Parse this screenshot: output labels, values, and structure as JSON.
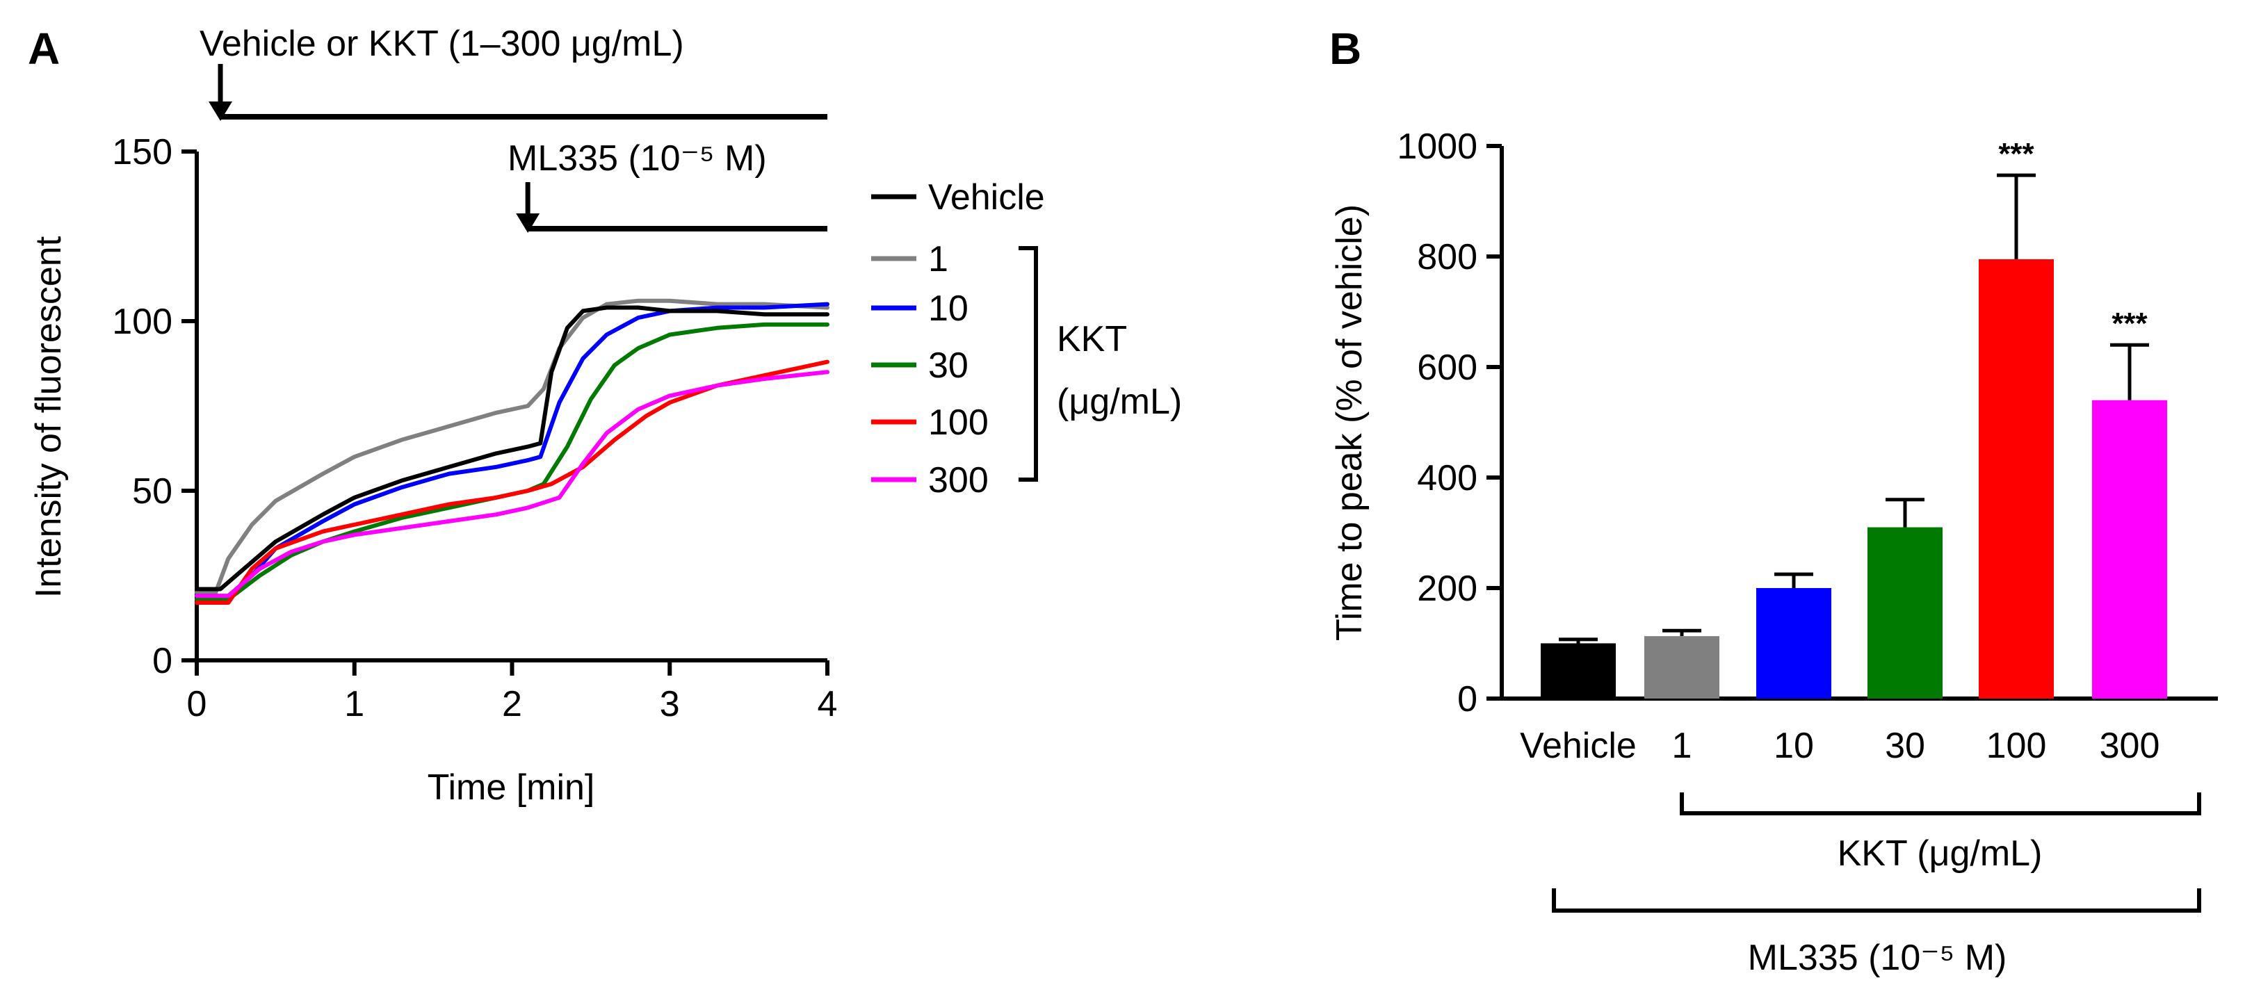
{
  "colors": {
    "vehicle": "#000000",
    "kkt_1": "#808080",
    "kkt_10": "#0000ff",
    "kkt_30": "#007a00",
    "kkt_100": "#ff0000",
    "kkt_300": "#ff00ff"
  },
  "chart_data": [
    {
      "panel": "A",
      "type": "line",
      "title": "",
      "xlabel": "Time [min]",
      "ylabel": "Intensity of fluorescent",
      "xlim": [
        0,
        4
      ],
      "ylim": [
        0,
        150
      ],
      "xticks": [
        0,
        1,
        2,
        3,
        4
      ],
      "yticks": [
        0,
        50,
        100,
        150
      ],
      "annotations": {
        "treatment": "Vehicle or KKT (1–300 μg/mL)",
        "treatment_start_min": 0.15,
        "ml335": "ML335 (10⁻⁵ M)",
        "ml335_start_min": 2.1
      },
      "legend": {
        "placement": "right",
        "group_label_line1": "KKT",
        "group_label_line2": "(μg/mL)",
        "entries": [
          "Vehicle",
          "1",
          "10",
          "30",
          "100",
          "300"
        ]
      },
      "series": [
        {
          "name": "Vehicle",
          "color": "#000000",
          "x": [
            0,
            0.15,
            0.3,
            0.5,
            0.8,
            1.0,
            1.3,
            1.6,
            1.9,
            2.1,
            2.18,
            2.25,
            2.35,
            2.45,
            2.6,
            2.8,
            3.0,
            3.3,
            3.6,
            4.0
          ],
          "y": [
            21,
            21,
            27,
            35,
            43,
            48,
            53,
            57,
            61,
            63,
            64,
            85,
            98,
            103,
            104,
            104,
            103,
            103,
            102,
            102
          ]
        },
        {
          "name": "1",
          "color": "#808080",
          "x": [
            0,
            0.12,
            0.2,
            0.35,
            0.5,
            0.8,
            1.0,
            1.3,
            1.6,
            1.9,
            2.1,
            2.2,
            2.3,
            2.45,
            2.6,
            2.8,
            3.0,
            3.3,
            3.6,
            4.0
          ],
          "y": [
            20,
            20,
            30,
            40,
            47,
            55,
            60,
            65,
            69,
            73,
            75,
            80,
            92,
            101,
            105,
            106,
            106,
            105,
            105,
            104
          ]
        },
        {
          "name": "10",
          "color": "#0000ff",
          "x": [
            0,
            0.2,
            0.35,
            0.5,
            0.8,
            1.0,
            1.3,
            1.6,
            1.9,
            2.1,
            2.18,
            2.3,
            2.45,
            2.6,
            2.8,
            3.0,
            3.3,
            3.6,
            4.0
          ],
          "y": [
            19,
            19,
            25,
            33,
            41,
            46,
            51,
            55,
            57,
            59,
            60,
            76,
            89,
            96,
            101,
            103,
            104,
            104,
            105
          ]
        },
        {
          "name": "30",
          "color": "#007a00",
          "x": [
            0,
            0.2,
            0.4,
            0.6,
            0.8,
            1.0,
            1.3,
            1.6,
            1.9,
            2.1,
            2.2,
            2.35,
            2.5,
            2.65,
            2.8,
            3.0,
            3.3,
            3.6,
            4.0
          ],
          "y": [
            18,
            18,
            25,
            31,
            35,
            38,
            42,
            45,
            48,
            50,
            52,
            63,
            77,
            87,
            92,
            96,
            98,
            99,
            99
          ]
        },
        {
          "name": "100",
          "color": "#ff0000",
          "x": [
            0,
            0.2,
            0.35,
            0.5,
            0.8,
            1.0,
            1.3,
            1.6,
            1.9,
            2.1,
            2.25,
            2.45,
            2.65,
            2.85,
            3.0,
            3.3,
            3.6,
            4.0
          ],
          "y": [
            17,
            17,
            27,
            33,
            38,
            40,
            43,
            46,
            48,
            50,
            52,
            57,
            65,
            72,
            76,
            81,
            84,
            88
          ]
        },
        {
          "name": "300",
          "color": "#ff00ff",
          "x": [
            0,
            0.2,
            0.4,
            0.6,
            0.8,
            1.0,
            1.3,
            1.6,
            1.9,
            2.1,
            2.3,
            2.45,
            2.6,
            2.8,
            3.0,
            3.3,
            3.6,
            4.0
          ],
          "y": [
            19,
            19,
            27,
            32,
            35,
            37,
            39,
            41,
            43,
            45,
            48,
            58,
            67,
            74,
            78,
            81,
            83,
            85
          ]
        }
      ]
    },
    {
      "panel": "B",
      "type": "bar",
      "title": "",
      "xlabel": "",
      "ylabel": "Time to peak (% of vehicle)",
      "ylim": [
        0,
        1000
      ],
      "yticks": [
        0,
        200,
        400,
        600,
        800,
        1000
      ],
      "categories": [
        "Vehicle",
        "1",
        "10",
        "30",
        "100",
        "300"
      ],
      "values": [
        100,
        113,
        200,
        310,
        795,
        540
      ],
      "errors": [
        7,
        10,
        25,
        50,
        152,
        100
      ],
      "significance": [
        "",
        "",
        "",
        "",
        "***",
        "***"
      ],
      "colors": [
        "#000000",
        "#808080",
        "#0000ff",
        "#007a00",
        "#ff0000",
        "#ff00ff"
      ],
      "group_labels": {
        "kkt": "KKT (μg/mL)",
        "ml335": "ML335 (10⁻⁵ M)"
      }
    }
  ],
  "panels": {
    "a_label": "A",
    "b_label": "B"
  }
}
